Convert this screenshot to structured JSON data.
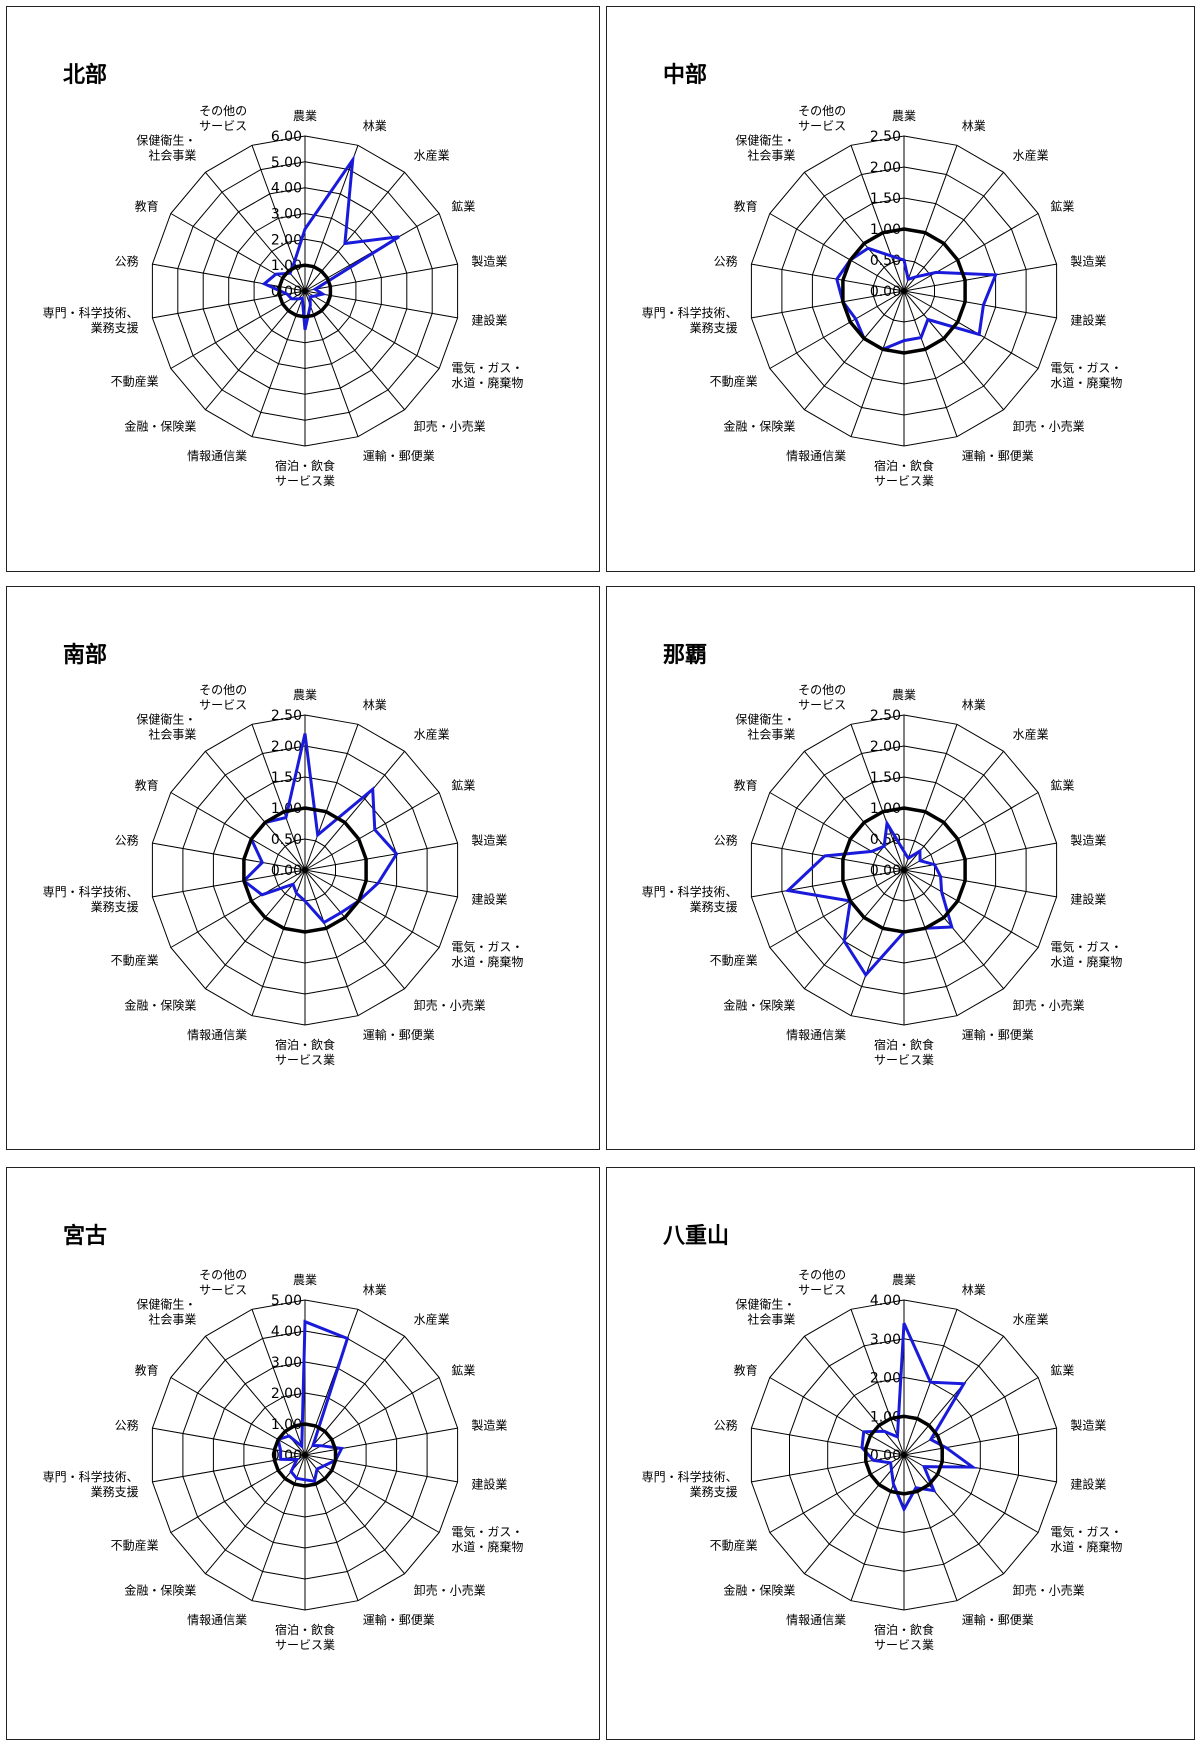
{
  "categories": [
    [
      "農業"
    ],
    [
      "林業"
    ],
    [
      "水産業"
    ],
    [
      "鉱業"
    ],
    [
      "製造業"
    ],
    [
      "建設業"
    ],
    [
      "電気・ガス・",
      "水道・廃棄物"
    ],
    [
      "卸売・小売業"
    ],
    [
      "運輸・郵便業"
    ],
    [
      "宿泊・飲食",
      "サービス業"
    ],
    [
      "情報通信業"
    ],
    [
      "金融・保険業"
    ],
    [
      "不動産業"
    ],
    [
      "専門・科学技術、",
      "業務支援"
    ],
    [
      "公務"
    ],
    [
      "教育"
    ],
    [
      "保健衛生・",
      "社会事業"
    ],
    [
      "その他の",
      "サービス"
    ]
  ],
  "colors": {
    "series": "#1a1adb",
    "reference": "#000000",
    "grid": "#000000"
  },
  "chart_data": [
    {
      "type": "radar",
      "title": "北部",
      "ylim": [
        0,
        6
      ],
      "ticks": [
        "0.00",
        "1.00",
        "2.00",
        "3.00",
        "4.00",
        "5.00",
        "6.00"
      ],
      "series": [
        {
          "values": [
            2.4,
            5.4,
            2.4,
            4.2,
            0.4,
            0.7,
            0.4,
            0.3,
            0.6,
            1.5,
            0.3,
            0.4,
            0.6,
            0.7,
            1.6,
            1.3,
            0.9,
            1.2
          ]
        },
        {
          "values": [
            1,
            1,
            1,
            1,
            1,
            1,
            1,
            1,
            1,
            1,
            1,
            1,
            1,
            1,
            1,
            1,
            1,
            1
          ]
        }
      ]
    },
    {
      "type": "radar",
      "title": "中部",
      "ylim": [
        0,
        2.5
      ],
      "ticks": [
        "0.00",
        "0.50",
        "1.00",
        "1.50",
        "2.00",
        "2.50"
      ],
      "series": [
        {
          "values": [
            0.5,
            0.2,
            0.3,
            0.6,
            1.5,
            1.3,
            1.4,
            0.6,
            0.8,
            0.8,
            1.0,
            1.0,
            0.9,
            1.0,
            1.1,
            1.0,
            0.9,
            0.6
          ]
        },
        {
          "values": [
            1,
            1,
            1,
            1,
            1,
            1,
            1,
            1,
            1,
            1,
            1,
            1,
            1,
            1,
            1,
            1,
            1,
            1
          ]
        }
      ]
    },
    {
      "type": "radar",
      "title": "南部",
      "ylim": [
        0,
        2.5
      ],
      "ticks": [
        "0.00",
        "0.50",
        "1.00",
        "1.50",
        "2.00",
        "2.50"
      ],
      "series": [
        {
          "values": [
            2.2,
            0.6,
            1.7,
            1.3,
            1.5,
            1.2,
            1.0,
            0.9,
            0.9,
            0.5,
            0.4,
            0.3,
            0.8,
            1.0,
            0.7,
            1.0,
            1.0,
            0.9
          ]
        },
        {
          "values": [
            1,
            1,
            1,
            1,
            1,
            1,
            1,
            1,
            1,
            1,
            1,
            1,
            1,
            1,
            1,
            1,
            1,
            1
          ]
        }
      ]
    },
    {
      "type": "radar",
      "title": "那覇",
      "ylim": [
        0,
        2.5
      ],
      "ticks": [
        "0.00",
        "0.50",
        "1.00",
        "1.50",
        "2.00",
        "2.50"
      ],
      "series": [
        {
          "values": [
            0.3,
            0.2,
            0.4,
            0.3,
            0.5,
            0.6,
            0.7,
            1.2,
            1.0,
            1.0,
            1.8,
            1.5,
            1.0,
            1.9,
            1.3,
            0.6,
            0.5,
            0.8
          ]
        },
        {
          "values": [
            1,
            1,
            1,
            1,
            1,
            1,
            1,
            1,
            1,
            1,
            1,
            1,
            1,
            1,
            1,
            1,
            1,
            1
          ]
        }
      ]
    },
    {
      "type": "radar",
      "title": "宮古",
      "ylim": [
        0,
        5
      ],
      "ticks": [
        "0.00",
        "1.00",
        "2.00",
        "3.00",
        "4.00",
        "5.00"
      ],
      "series": [
        {
          "values": [
            4.3,
            4.0,
            0.4,
            0.6,
            1.2,
            1.0,
            0.7,
            0.6,
            0.9,
            0.8,
            0.8,
            0.7,
            0.3,
            0.8,
            0.8,
            1.0,
            0.8,
            0.3
          ]
        },
        {
          "values": [
            1,
            1,
            1,
            1,
            1,
            1,
            1,
            1,
            1,
            1,
            1,
            1,
            1,
            1,
            1,
            1,
            1,
            1
          ]
        }
      ]
    },
    {
      "type": "radar",
      "title": "八重山",
      "ylim": [
        0,
        4
      ],
      "ticks": [
        "0.00",
        "1.00",
        "2.00",
        "3.00",
        "4.00"
      ],
      "series": [
        {
          "values": [
            3.4,
            2.0,
            2.4,
            0.8,
            1.1,
            1.8,
            0.6,
            1.2,
            0.9,
            1.4,
            0.8,
            0.5,
            0.4,
            0.8,
            1.1,
            1.2,
            0.8,
            0.5
          ]
        },
        {
          "values": [
            1,
            1,
            1,
            1,
            1,
            1,
            1,
            1,
            1,
            1,
            1,
            1,
            1,
            1,
            1,
            1,
            1,
            1
          ]
        }
      ]
    }
  ]
}
